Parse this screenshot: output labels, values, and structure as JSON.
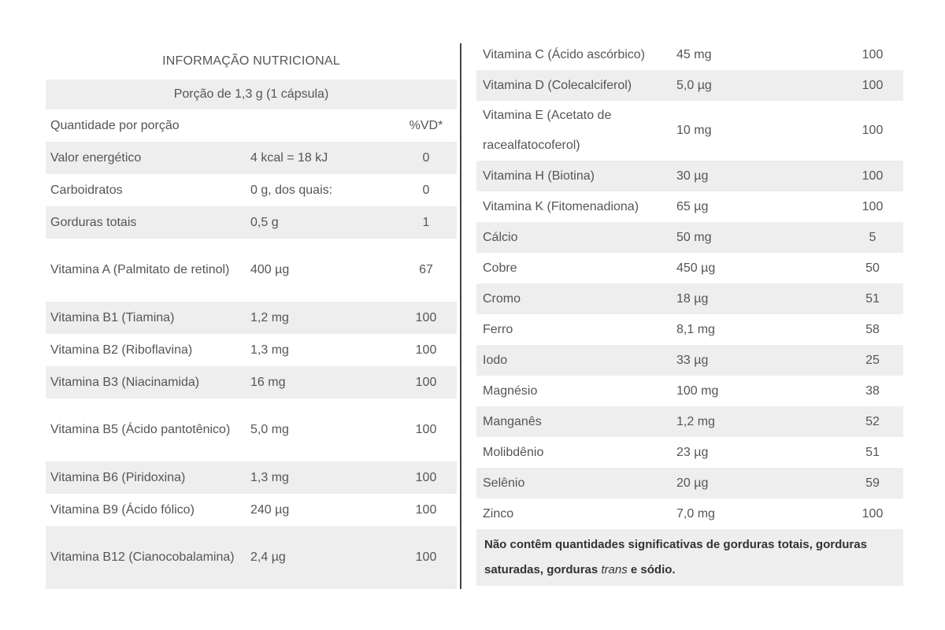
{
  "header": {
    "title": "INFORMAÇÃO NUTRICIONAL",
    "portion": "Porção de 1,3 g (1 cápsula)",
    "qty_label": "Quantidade por porção",
    "vd_label": "%VD*"
  },
  "left_rows": [
    {
      "name": "Valor energético",
      "amount": "4 kcal = 18 kJ",
      "vd": "0"
    },
    {
      "name": "Carboidratos",
      "amount": "0 g, dos quais:",
      "vd": "0"
    },
    {
      "name": "Gorduras totais",
      "amount": "0,5 g",
      "vd": "1"
    },
    {
      "name": "Vitamina A (Palmitato de retinol)",
      "amount": "400 µg",
      "vd": "67"
    },
    {
      "name": "Vitamina B1 (Tiamina)",
      "amount": "1,2 mg",
      "vd": "100"
    },
    {
      "name": "Vitamina B2 (Riboflavina)",
      "amount": "1,3 mg",
      "vd": "100"
    },
    {
      "name": "Vitamina B3 (Niacinamida)",
      "amount": "16 mg",
      "vd": "100"
    },
    {
      "name": "Vitamina B5 (Ácido pantotênico)",
      "amount": "5,0 mg",
      "vd": "100"
    },
    {
      "name": "Vitamina B6 (Piridoxina)",
      "amount": "1,3 mg",
      "vd": "100"
    },
    {
      "name": "Vitamina B9 (Ácido fólico)",
      "amount": "240 µg",
      "vd": "100"
    },
    {
      "name": "Vitamina B12 (Cianocobalamina)",
      "amount": "2,4 µg",
      "vd": "100"
    }
  ],
  "right_rows": [
    {
      "name": "Vitamina C (Ácido ascórbico)",
      "amount": "45 mg",
      "vd": "100"
    },
    {
      "name": "Vitamina D (Colecalciferol)",
      "amount": "5,0 µg",
      "vd": "100"
    },
    {
      "name": "Vitamina E (Acetato de racealfatocoferol)",
      "amount": "10 mg",
      "vd": "100"
    },
    {
      "name": "Vitamina H (Biotina)",
      "amount": "30 µg",
      "vd": "100"
    },
    {
      "name": "Vitamina K (Fitomenadiona)",
      "amount": "65 µg",
      "vd": "100"
    },
    {
      "name": "Cálcio",
      "amount": "50 mg",
      "vd": "5"
    },
    {
      "name": "Cobre",
      "amount": "450 µg",
      "vd": "50"
    },
    {
      "name": "Cromo",
      "amount": "18 µg",
      "vd": "51"
    },
    {
      "name": "Ferro",
      "amount": "8,1 mg",
      "vd": "58"
    },
    {
      "name": "Iodo",
      "amount": "33 µg",
      "vd": "25"
    },
    {
      "name": "Magnésio",
      "amount": "100 mg",
      "vd": "38"
    },
    {
      "name": "Manganês",
      "amount": "1,2 mg",
      "vd": "52"
    },
    {
      "name": "Molibdênio",
      "amount": "23 µg",
      "vd": "51"
    },
    {
      "name": "Selênio",
      "amount": "20 µg",
      "vd": "59"
    },
    {
      "name": "Zinco",
      "amount": "7,0 mg",
      "vd": "100"
    }
  ],
  "footnote": {
    "part1": "Não contêm quantidades significativas de gorduras totais, gorduras saturadas, gorduras ",
    "italic": "trans",
    "part2": " e sódio."
  }
}
